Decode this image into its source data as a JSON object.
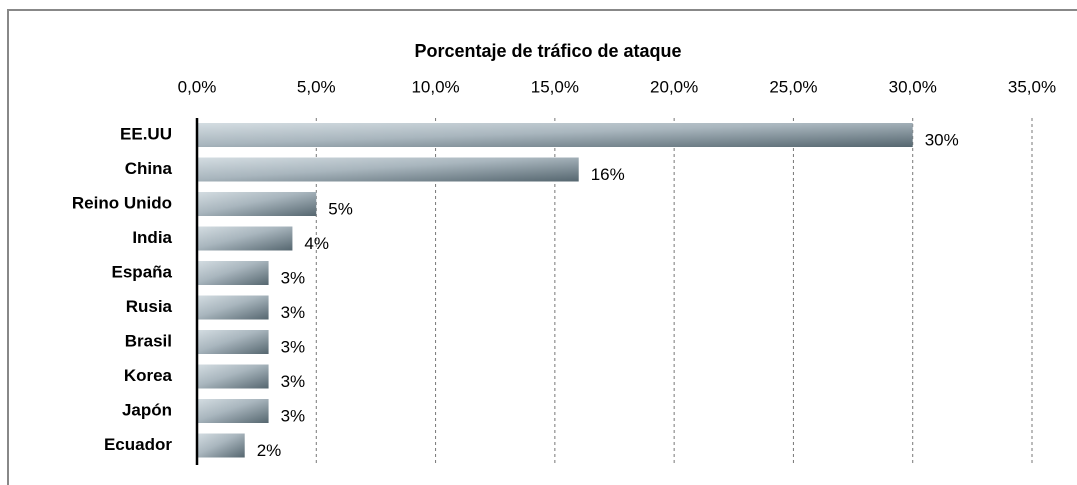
{
  "chart_data": {
    "type": "bar",
    "orientation": "horizontal",
    "title": "Porcentaje de tráfico de ataque",
    "categories": [
      "EE.UU",
      "China",
      "Reino Unido",
      "India",
      "España",
      "Rusia",
      "Brasil",
      "Korea",
      "Japón",
      "Ecuador"
    ],
    "values": [
      30,
      16,
      5,
      4,
      3,
      3,
      3,
      3,
      3,
      2
    ],
    "value_labels": [
      "30%",
      "16%",
      "5%",
      "4%",
      "3%",
      "3%",
      "3%",
      "3%",
      "3%",
      "2%"
    ],
    "color": "#5a6b75",
    "xlim": [
      0,
      35
    ],
    "xticks": [
      {
        "value": 0,
        "label": "0,0%"
      },
      {
        "value": 5,
        "label": "5,0%"
      },
      {
        "value": 10,
        "label": "10,0%"
      },
      {
        "value": 15,
        "label": "15,0%"
      },
      {
        "value": 20,
        "label": "20,0%"
      },
      {
        "value": 25,
        "label": "25,0%"
      },
      {
        "value": 30,
        "label": "30,0%"
      },
      {
        "value": 35,
        "label": "35,0%"
      }
    ],
    "grid": true
  }
}
